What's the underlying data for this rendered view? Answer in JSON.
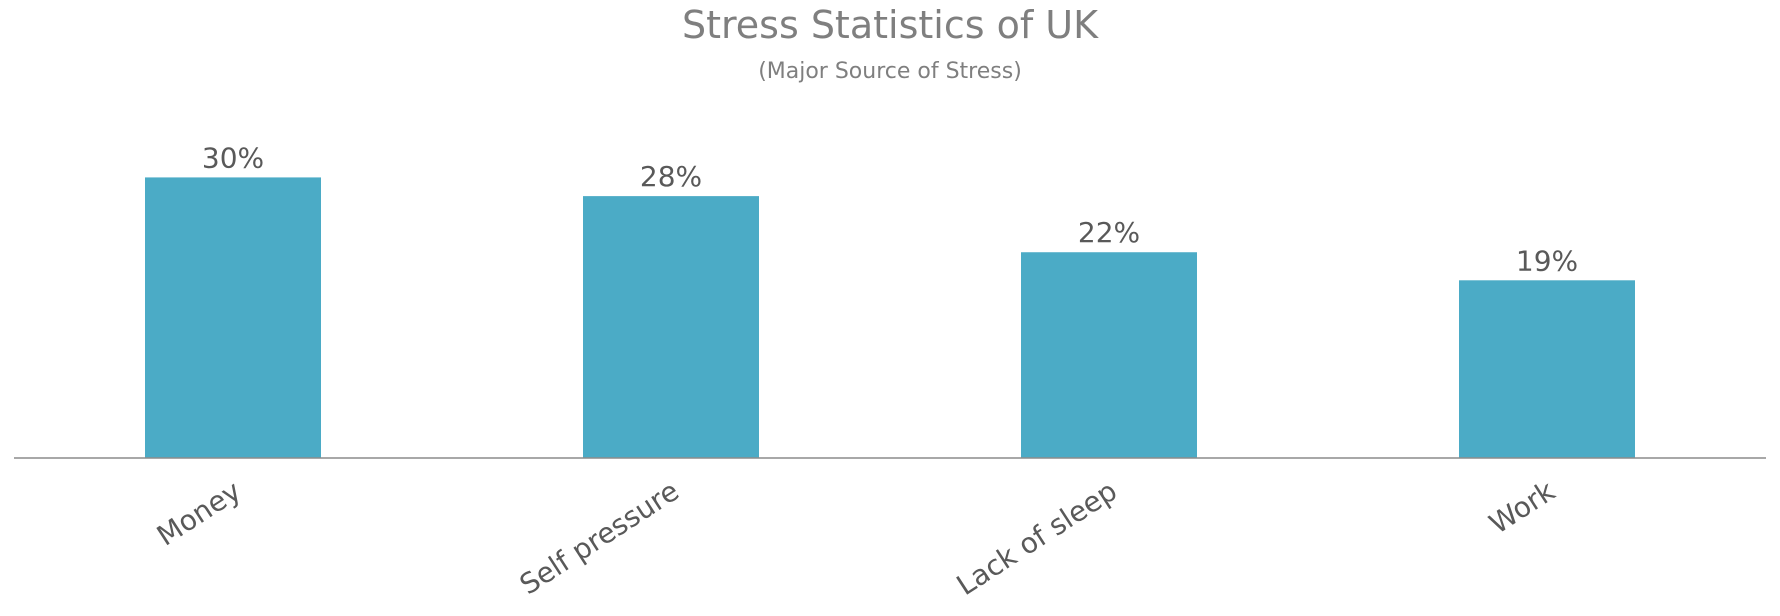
{
  "chart_data": {
    "type": "bar",
    "title": "Stress Statistics of UK",
    "subtitle": "(Major Source of Stress)",
    "categories": [
      "Money",
      "Self pressure",
      "Lack of sleep",
      "Work"
    ],
    "values": [
      30,
      28,
      22,
      19
    ],
    "value_labels": [
      "30%",
      "28%",
      "22%",
      "19%"
    ],
    "xlabel": "",
    "ylabel": "",
    "ylim": [
      0,
      34
    ],
    "grid": false,
    "legend": "none",
    "colors": {
      "bar": "#4babc6",
      "axis": "#8c8c8c",
      "title_text": "#7f7f7f",
      "label_text": "#595959"
    }
  }
}
